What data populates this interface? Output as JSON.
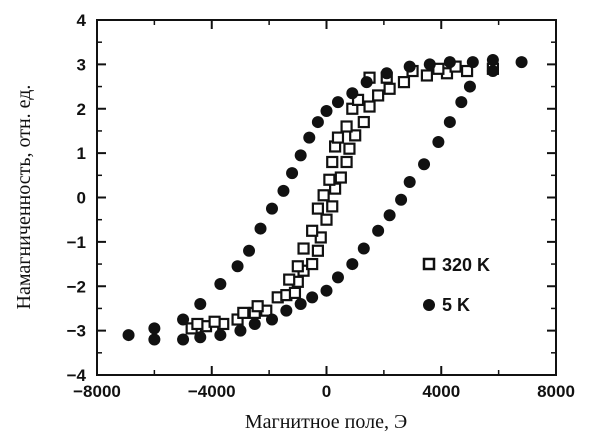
{
  "chart_data": {
    "type": "scatter",
    "xlabel": "Магнитное поле, Э",
    "ylabel": "Намагниченность, отн. ед.",
    "xlim": [
      -8000,
      8000
    ],
    "ylim": [
      -4,
      4
    ],
    "x_ticks": [
      -8000,
      -4000,
      0,
      4000,
      8000
    ],
    "x_tick_labels": [
      "−8000",
      "−4000",
      "0",
      "4000",
      "8000"
    ],
    "y_ticks": [
      -4,
      -3,
      -2,
      -1,
      0,
      1,
      2,
      3,
      4
    ],
    "y_tick_labels": [
      "−4",
      "−3",
      "−2",
      "−1",
      "0",
      "1",
      "2",
      "3",
      "4"
    ],
    "legend_position": "lower-right",
    "grid": false,
    "series": [
      {
        "name": "320 K",
        "marker": "open-square",
        "points": [
          [
            -4700,
            -2.95
          ],
          [
            -4200,
            -2.9
          ],
          [
            -3600,
            -2.85
          ],
          [
            -3100,
            -2.75
          ],
          [
            -2500,
            -2.6
          ],
          [
            -2100,
            -2.55
          ],
          [
            -1700,
            -2.25
          ],
          [
            -1400,
            -2.2
          ],
          [
            -1100,
            -2.15
          ],
          [
            -1000,
            -1.9
          ],
          [
            -800,
            -1.65
          ],
          [
            -500,
            -1.5
          ],
          [
            -300,
            -1.2
          ],
          [
            -200,
            -0.9
          ],
          [
            0,
            -0.5
          ],
          [
            200,
            -0.2
          ],
          [
            300,
            0.2
          ],
          [
            500,
            0.45
          ],
          [
            700,
            0.8
          ],
          [
            800,
            1.1
          ],
          [
            1000,
            1.4
          ],
          [
            1300,
            1.7
          ],
          [
            1500,
            2.05
          ],
          [
            1800,
            2.3
          ],
          [
            2200,
            2.45
          ],
          [
            2700,
            2.6
          ],
          [
            3500,
            2.75
          ],
          [
            4200,
            2.8
          ],
          [
            4900,
            2.85
          ],
          [
            5800,
            2.9
          ],
          [
            -4500,
            -2.85
          ],
          [
            -3900,
            -2.8
          ],
          [
            -2900,
            -2.6
          ],
          [
            -2400,
            -2.45
          ],
          [
            -1300,
            -1.85
          ],
          [
            -1000,
            -1.55
          ],
          [
            -800,
            -1.15
          ],
          [
            -500,
            -0.75
          ],
          [
            -300,
            -0.25
          ],
          [
            -100,
            0.05
          ],
          [
            100,
            0.4
          ],
          [
            200,
            0.8
          ],
          [
            300,
            1.15
          ],
          [
            400,
            1.35
          ],
          [
            700,
            1.6
          ],
          [
            900,
            2.0
          ],
          [
            1100,
            2.2
          ],
          [
            1500,
            2.7
          ],
          [
            2100,
            2.7
          ],
          [
            3000,
            2.85
          ],
          [
            3900,
            2.9
          ],
          [
            4500,
            2.95
          ]
        ]
      },
      {
        "name": "5 K",
        "marker": "filled-circle",
        "points": [
          [
            -6900,
            -3.1
          ],
          [
            -6000,
            -3.2
          ],
          [
            -5000,
            -3.2
          ],
          [
            -4400,
            -3.15
          ],
          [
            -3700,
            -3.1
          ],
          [
            -3000,
            -3.0
          ],
          [
            -2500,
            -2.85
          ],
          [
            -1900,
            -2.75
          ],
          [
            -1400,
            -2.55
          ],
          [
            -900,
            -2.4
          ],
          [
            -500,
            -2.25
          ],
          [
            0,
            -2.1
          ],
          [
            400,
            -1.8
          ],
          [
            900,
            -1.5
          ],
          [
            1300,
            -1.15
          ],
          [
            1800,
            -0.75
          ],
          [
            2200,
            -0.4
          ],
          [
            2600,
            -0.05
          ],
          [
            2900,
            0.35
          ],
          [
            3400,
            0.75
          ],
          [
            3900,
            1.25
          ],
          [
            4300,
            1.7
          ],
          [
            4700,
            2.15
          ],
          [
            5000,
            2.5
          ],
          [
            5800,
            2.85
          ],
          [
            6800,
            3.05
          ],
          [
            -6000,
            -2.95
          ],
          [
            -5000,
            -2.75
          ],
          [
            -4400,
            -2.4
          ],
          [
            -3700,
            -1.95
          ],
          [
            -3100,
            -1.55
          ],
          [
            -2700,
            -1.2
          ],
          [
            -2300,
            -0.7
          ],
          [
            -1900,
            -0.25
          ],
          [
            -1500,
            0.15
          ],
          [
            -1200,
            0.55
          ],
          [
            -900,
            0.95
          ],
          [
            -600,
            1.35
          ],
          [
            -300,
            1.7
          ],
          [
            0,
            1.95
          ],
          [
            400,
            2.15
          ],
          [
            900,
            2.35
          ],
          [
            1400,
            2.6
          ],
          [
            2100,
            2.8
          ],
          [
            2900,
            2.95
          ],
          [
            3600,
            3.0
          ],
          [
            4300,
            3.05
          ],
          [
            5100,
            3.05
          ],
          [
            5800,
            3.1
          ]
        ]
      }
    ]
  }
}
